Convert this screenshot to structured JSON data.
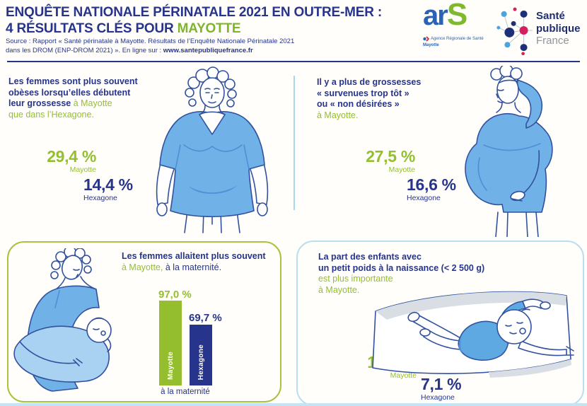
{
  "colors": {
    "navy": "#27348b",
    "green": "#94bf2f",
    "title_green": "#7fb52d",
    "light_blue_divider": "#a9d6ef",
    "green_box_border": "#a9c23f",
    "blue_box_border": "#b9def2",
    "illustration_blue": "#70b1e7",
    "bar_green": "#94be2e",
    "bar_blue": "#27348b"
  },
  "header": {
    "title_line1": "ENQUÊTE NATIONALE PÉRINATALE 2021 EN OUTRE-MER :",
    "title_line2": "4 RÉSULTATS CLÉS POUR",
    "title_highlight": "MAYOTTE",
    "source_line1": "Source : Rapport « Santé périnatale à Mayotte. Résultats de l’Enquête Nationale Périnatale 2021",
    "source_line2": "dans les DROM (ENP-DROM 2021) ». En ligne sur :",
    "source_link": "www.santepubliquefrance.fr",
    "ars_logo": {
      "ar": "ar",
      "s": "S",
      "agency": "Agence Régionale de Santé",
      "region": "Mayotte"
    },
    "spf_logo": {
      "word1": "Santé",
      "word2": "publique",
      "word3": "France"
    }
  },
  "panels": {
    "obesity": {
      "line1": "Les femmes sont plus souvent",
      "line2": "obèses lorsqu’elles débutent",
      "line3_bold": "leur grossesse",
      "line3_green": " à Mayotte",
      "line4": "que dans l’Hexagone.",
      "mayotte_value": "29,4 %",
      "mayotte_label": "Mayotte",
      "hexagone_value": "14,4 %",
      "hexagone_label": "Hexagone"
    },
    "pregnancy": {
      "line1": "Il y a plus de grossesses",
      "line2": "« survenues trop tôt »",
      "line3": "ou « non désirées »",
      "line4": "à Mayotte.",
      "mayotte_value": "27,5 %",
      "mayotte_label": "Mayotte",
      "hexagone_value": "16,6 %",
      "hexagone_label": "Hexagone"
    },
    "breastfeeding": {
      "line1": "Les femmes allaitent plus souvent",
      "line2_green": "à Mayotte,",
      "line2_rest": " à la maternité.",
      "mayotte_value": "97,0 %",
      "hexagone_value": "69,7 %",
      "mayotte_bar_label": "Mayotte",
      "hexagone_bar_label": "Hexagone",
      "axis_label": "à la maternité"
    },
    "birthweight": {
      "line1": "La part des enfants avec",
      "line2": "un petit poids à la naissance (< 2 500 g)",
      "line3": "est plus importante",
      "line4": "à Mayotte.",
      "mayotte_value": "10,8 %",
      "mayotte_label": "Mayotte",
      "hexagone_value": "7,1 %",
      "hexagone_label": "Hexagone"
    }
  },
  "chart_data": [
    {
      "id": "obesite_debut_grossesse",
      "type": "bar",
      "title": "Les femmes sont plus souvent obèses lorsqu’elles débutent leur grossesse à Mayotte que dans l’Hexagone.",
      "categories": [
        "Mayotte",
        "Hexagone"
      ],
      "values": [
        29.4,
        14.4
      ],
      "unit": "%"
    },
    {
      "id": "grossesses_trop_tot_non_desirees",
      "type": "bar",
      "title": "Il y a plus de grossesses « survenues trop tôt » ou « non désirées » à Mayotte.",
      "categories": [
        "Mayotte",
        "Hexagone"
      ],
      "values": [
        27.5,
        16.6
      ],
      "unit": "%"
    },
    {
      "id": "allaitement_maternite",
      "type": "bar",
      "title": "Les femmes allaitent plus souvent à Mayotte, à la maternité.",
      "categories": [
        "Mayotte",
        "Hexagone"
      ],
      "values": [
        97.0,
        69.7
      ],
      "unit": "%",
      "xlabel": "à la maternité",
      "ylim": [
        0,
        100
      ],
      "legend_position": "inside-bars"
    },
    {
      "id": "petit_poids_naissance",
      "type": "bar",
      "title": "La part des enfants avec un petit poids à la naissance (< 2 500 g) est plus importante à Mayotte.",
      "categories": [
        "Mayotte",
        "Hexagone"
      ],
      "values": [
        10.8,
        7.1
      ],
      "unit": "%"
    }
  ]
}
